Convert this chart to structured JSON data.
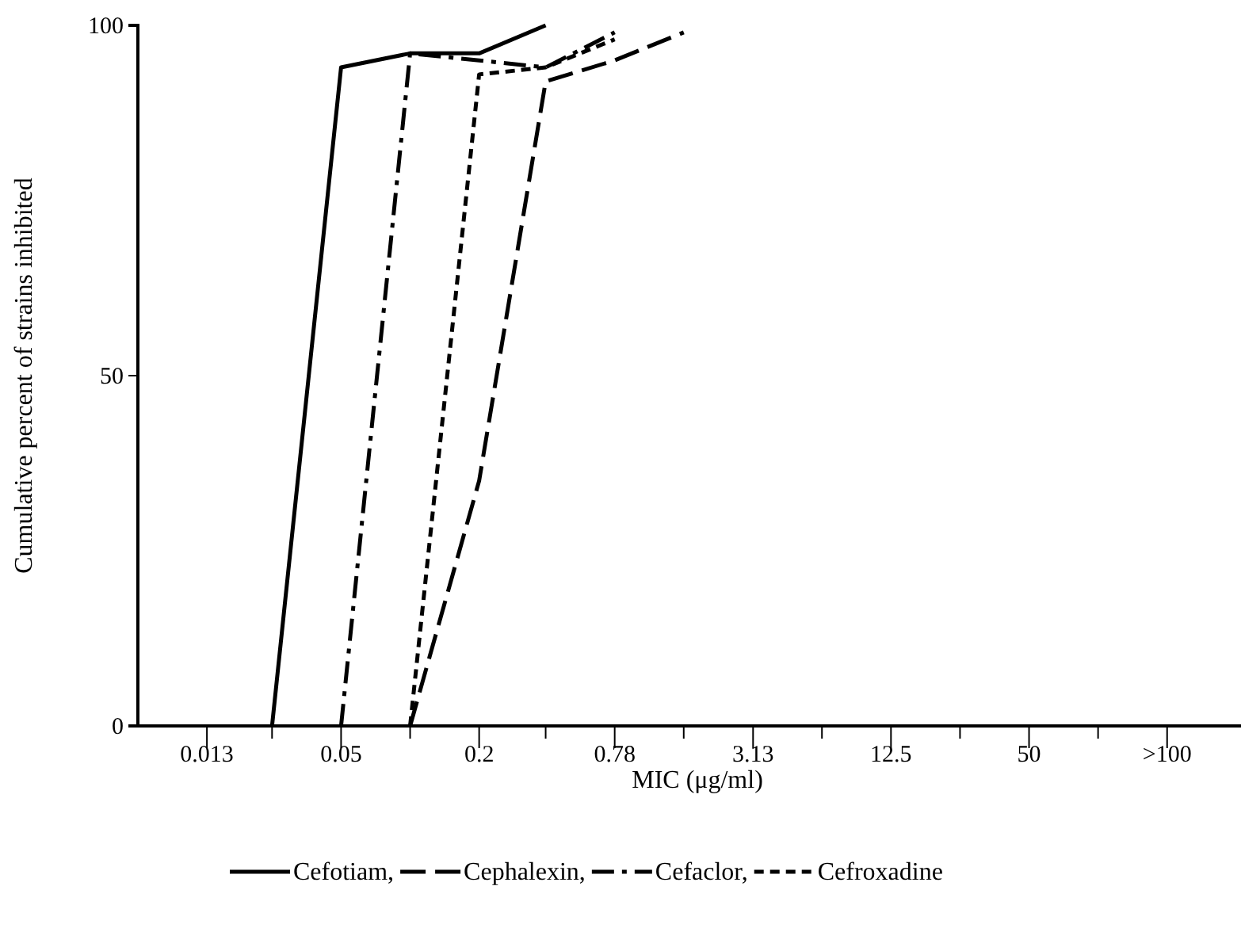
{
  "chart_data": {
    "type": "line",
    "xlabel": "MIC (μg/ml)",
    "ylabel": "Cumulative percent of strains inhibited",
    "log": "x",
    "xlim": [
      0.0065,
      420
    ],
    "xticks": [
      0.013,
      {
        "value": 0.025,
        "label": null
      },
      0.05,
      {
        "value": 0.1,
        "label": null
      },
      0.2,
      {
        "value": 0.39,
        "label": null
      },
      0.78,
      {
        "value": 1.56,
        "label": null
      },
      3.13,
      {
        "value": 6.25,
        "label": null
      },
      12.5,
      {
        "value": 25,
        "label": null
      },
      50,
      {
        "value": 100,
        "label": null
      },
      {
        "value": 200,
        "label": ">100"
      }
    ],
    "ylim": [
      0,
      100
    ],
    "yticks": [
      0,
      50,
      100
    ],
    "grid": false,
    "legend": "bottom",
    "marker": "none",
    "series": [
      {
        "name": "Cefotiam,",
        "color": "#000000",
        "line_style": "solid",
        "x": [
          0.025,
          0.05,
          0.1,
          0.2,
          0.39
        ],
        "values": [
          0,
          94,
          96,
          96,
          100
        ]
      },
      {
        "name": "Cephalexin,",
        "color": "#000000",
        "line_style": "dashed",
        "x": [
          0.1,
          0.2,
          0.39,
          0.78,
          1.56
        ],
        "values": [
          0,
          35,
          92,
          95,
          99
        ]
      },
      {
        "name": "Cefaclor,",
        "color": "#000000",
        "line_style": "dashdot",
        "x": [
          0.05,
          0.1,
          0.2,
          0.39,
          0.78
        ],
        "values": [
          0,
          96,
          95,
          94,
          99
        ]
      },
      {
        "name": "Cefroxadine",
        "color": "#000000",
        "line_style": "dotted",
        "x": [
          0.1,
          0.2,
          0.39,
          0.78
        ],
        "values": [
          0,
          93,
          94,
          98
        ]
      }
    ]
  }
}
